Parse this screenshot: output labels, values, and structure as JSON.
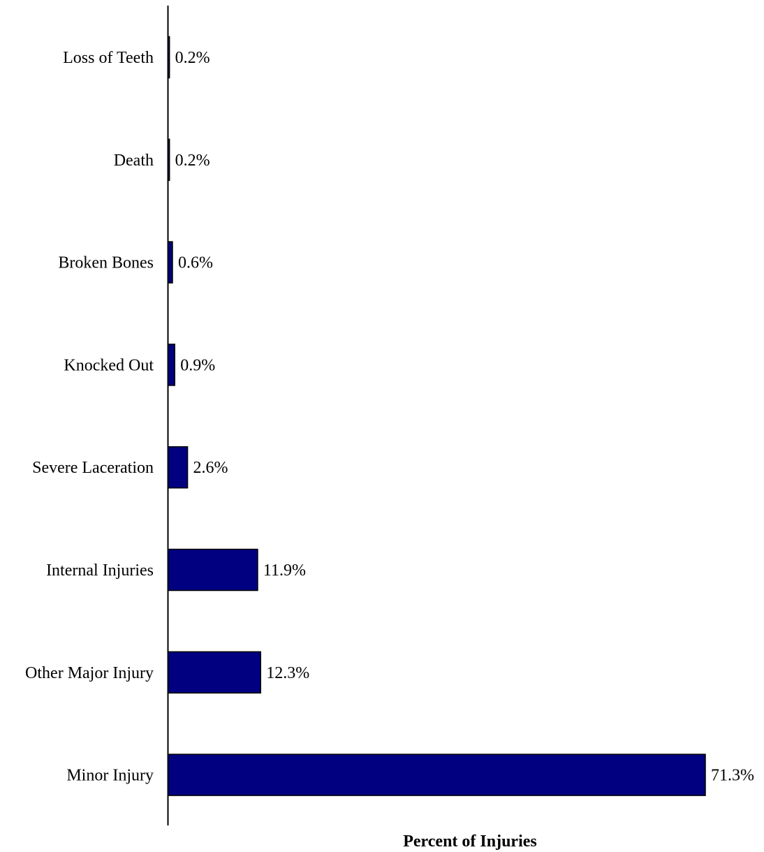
{
  "chart_data": {
    "type": "bar",
    "orientation": "horizontal",
    "categories": [
      "Loss of Teeth",
      "Death",
      "Broken Bones",
      "Knocked Out",
      "Severe Laceration",
      "Internal Injuries",
      "Other Major Injury",
      "Minor Injury"
    ],
    "values": [
      0.2,
      0.2,
      0.6,
      0.9,
      2.6,
      11.9,
      12.3,
      71.3
    ],
    "data_labels": [
      "0.2%",
      "0.2%",
      "0.6%",
      "0.9%",
      "2.6%",
      "11.9%",
      "12.3%",
      "71.3%"
    ],
    "title": "",
    "xlabel": "Percent of Injuries",
    "ylabel": "",
    "xlim": [
      0,
      71.3
    ],
    "grid": false,
    "legend": "none",
    "colors": {
      "bar_fill": "#000080",
      "bar_stroke": "#000000",
      "axis": "#000000"
    }
  }
}
